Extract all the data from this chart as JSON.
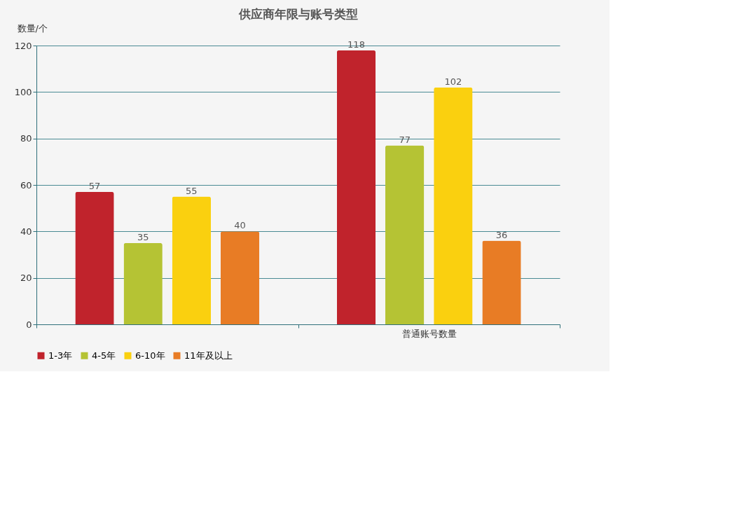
{
  "chart_data": {
    "type": "bar",
    "title": "供应商年限与账号类型",
    "ylabel": "数量/个",
    "categories": [
      null,
      "普通账号数量"
    ],
    "series": [
      {
        "name": "1-3年",
        "color": "#c0232c",
        "values": [
          57,
          118
        ]
      },
      {
        "name": "4-5年",
        "color": "#b5c334",
        "values": [
          35,
          77
        ]
      },
      {
        "name": "6-10年",
        "color": "#fad00f",
        "values": [
          55,
          102
        ]
      },
      {
        "name": "11年及以上",
        "color": "#e87c25",
        "values": [
          40,
          36
        ]
      }
    ],
    "ylim": [
      0,
      120
    ],
    "yticks": [
      0,
      20,
      40,
      60,
      80,
      100,
      120
    ],
    "grid": "y",
    "legend": "bottom",
    "data_labels": true
  }
}
